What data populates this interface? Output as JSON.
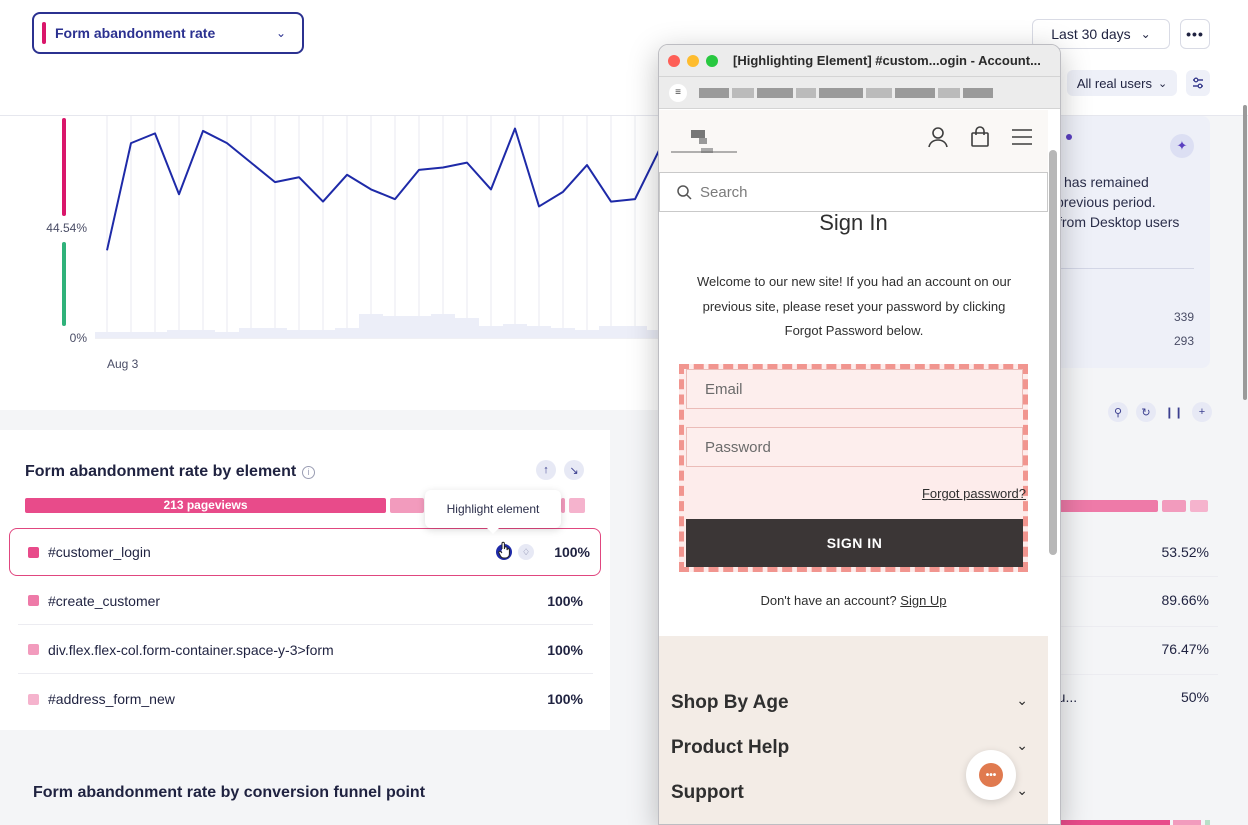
{
  "header": {
    "metric_select": "Form abandonment rate",
    "date_range": "Last 30 days",
    "more_label": "•••",
    "users_filter": "All real users"
  },
  "chart_data": {
    "type": "line",
    "x_tick_labels": [
      "Aug 3"
    ],
    "y_tick_labels": [
      "44.54%",
      "0%"
    ],
    "ylim": [
      0,
      89.08
    ],
    "series": [
      {
        "values": [
          36,
          80,
          84,
          59,
          85,
          80,
          72,
          64,
          66,
          56,
          67,
          61,
          57,
          69,
          70,
          72,
          61,
          86,
          54,
          60,
          71,
          56,
          57,
          77
        ]
      }
    ],
    "volume": [
      3,
      3,
      3,
      4,
      4,
      3,
      5,
      5,
      4,
      4,
      5,
      12,
      11,
      11,
      12,
      10,
      6,
      7,
      6,
      5,
      4,
      6,
      6,
      4
    ]
  },
  "insight_card": {
    "lines": [
      "has remained",
      "previous period.",
      "from Desktop users"
    ],
    "values": [
      "339",
      "293"
    ]
  },
  "element_table": {
    "title": "Form abandonment rate by element",
    "pageviews_label": "213 pageviews",
    "tooltip": "Highlight element",
    "rows": [
      {
        "label": "#customer_login",
        "pct": "100%",
        "color": "#e84b8a"
      },
      {
        "label": "#create_customer",
        "pct": "100%",
        "color": "#ee7aa8"
      },
      {
        "label": "div.flex.flex-col.form-container.space-y-3>form",
        "pct": "100%",
        "color": "#f29bbd"
      },
      {
        "label": "#address_form_new",
        "pct": "100%",
        "color": "#f5b3cd"
      }
    ]
  },
  "right_table": {
    "values": [
      "53.52%",
      "89.66%",
      "76.47%",
      "50%"
    ],
    "last_label": "etu..."
  },
  "funnel_title": "Form abandonment rate by conversion funnel point",
  "popup": {
    "title": "[Highlighting Element] #custom...ogin - Account...",
    "site": {
      "search_placeholder": "Search",
      "heading": "Sign In",
      "welcome": "Welcome to our new site! If you had an account on our previous site, please reset your password by clicking Forgot Password below.",
      "email_placeholder": "Email",
      "password_placeholder": "Password",
      "forgot": "Forgot password?",
      "signin_button": "SIGN IN",
      "no_account": "Don't have an account?",
      "signup": "Sign Up",
      "accordions": [
        "Shop By Age",
        "Product Help",
        "Support"
      ]
    }
  }
}
